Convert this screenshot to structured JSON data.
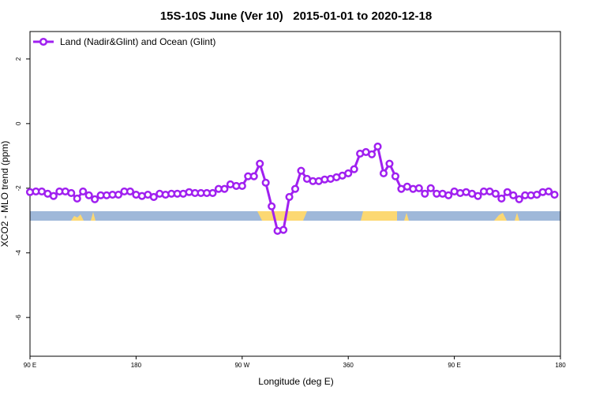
{
  "chart_data": {
    "type": "line",
    "title": "15S-10S June (Ver 10)   2015-01-01 to 2020-12-18",
    "x_label": "Longitude (deg E)",
    "y_label": "XCO2 - MLO trend (ppm)",
    "x": [
      90,
      95,
      100,
      105,
      110,
      115,
      120,
      125,
      130,
      135,
      140,
      145,
      150,
      155,
      160,
      165,
      170,
      175,
      180,
      185,
      190,
      195,
      200,
      205,
      210,
      215,
      220,
      225,
      230,
      235,
      240,
      245,
      250,
      255,
      260,
      265,
      270,
      275,
      280,
      285,
      290,
      295,
      300,
      305,
      310,
      315,
      320,
      325,
      330,
      335,
      340,
      345,
      350,
      355,
      360,
      365,
      370,
      375,
      380,
      385,
      390,
      395,
      400,
      405,
      410,
      415,
      420,
      425,
      430,
      435,
      440,
      445,
      450,
      455,
      460,
      465,
      470,
      475,
      480,
      485,
      490,
      495,
      500,
      505,
      510,
      515,
      520,
      525,
      530,
      535
    ],
    "series": [
      {
        "name": "Land (Nadir&Glint) and Ocean (Glint)",
        "color": "#a020f0",
        "values": [
          -2.12,
          -2.1,
          -2.1,
          -2.17,
          -2.24,
          -2.1,
          -2.1,
          -2.15,
          -2.32,
          -2.1,
          -2.22,
          -2.34,
          -2.22,
          -2.22,
          -2.2,
          -2.2,
          -2.1,
          -2.1,
          -2.2,
          -2.24,
          -2.2,
          -2.27,
          -2.17,
          -2.2,
          -2.17,
          -2.17,
          -2.17,
          -2.12,
          -2.15,
          -2.15,
          -2.15,
          -2.15,
          -2.02,
          -2.02,
          -1.88,
          -1.93,
          -1.93,
          -1.63,
          -1.63,
          -1.24,
          -1.83,
          -2.56,
          -3.32,
          -3.29,
          -2.27,
          -2.02,
          -1.46,
          -1.71,
          -1.78,
          -1.78,
          -1.73,
          -1.71,
          -1.66,
          -1.61,
          -1.54,
          -1.41,
          -0.93,
          -0.88,
          -0.95,
          -0.71,
          -1.54,
          -1.24,
          -1.63,
          -2.02,
          -1.95,
          -2.02,
          -2.0,
          -2.17,
          -2.0,
          -2.17,
          -2.17,
          -2.22,
          -2.1,
          -2.15,
          -2.12,
          -2.17,
          -2.24,
          -2.1,
          -2.1,
          -2.17,
          -2.32,
          -2.12,
          -2.22,
          -2.34,
          -2.22,
          -2.22,
          -2.2,
          -2.12,
          -2.1,
          -2.2
        ]
      }
    ],
    "xlim": [
      90,
      540
    ],
    "xticks": [
      {
        "value": 90,
        "label": "90 E"
      },
      {
        "value": 180,
        "label": "180"
      },
      {
        "value": 270,
        "label": "90 W"
      },
      360,
      {
        "value": 450,
        "label": "90 E"
      },
      {
        "value": 540,
        "label": "180"
      }
    ],
    "ylim": [
      -7.2,
      2.85
    ],
    "yticks": [
      -6,
      -4,
      -2,
      0,
      2
    ],
    "legend": "top-left"
  }
}
